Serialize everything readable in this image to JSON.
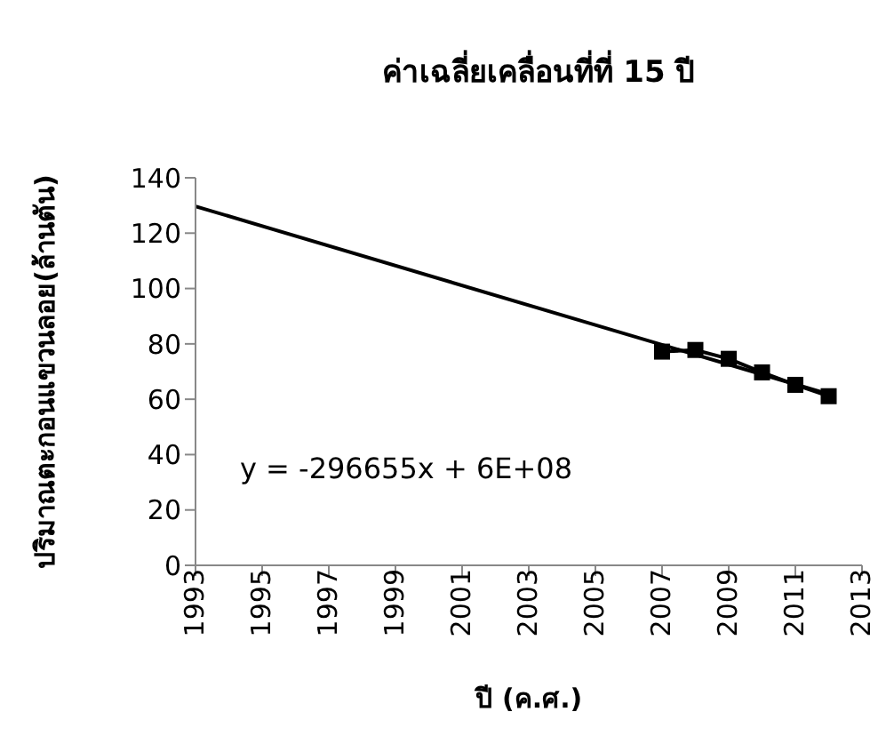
{
  "chart_data": {
    "type": "line",
    "title": "ค่าเฉลี่ยเคลื่อนที่ที่ 15 ปี",
    "xlabel": "ปี  (ค.ศ.)",
    "ylabel": "ปริมาณตะกอนแขวนลอย(ล้านตัน)",
    "annotations": [
      "y = -296655x + 6E+08"
    ],
    "xlim": [
      1993,
      2013
    ],
    "xticks": [
      1993,
      1995,
      1997,
      1999,
      2001,
      2003,
      2005,
      2007,
      2009,
      2011,
      2013
    ],
    "ylim": [
      0,
      140
    ],
    "yticks": [
      0,
      20,
      40,
      60,
      80,
      100,
      120,
      140
    ],
    "grid": false,
    "series": [
      {
        "color": "#000000",
        "marker": "square",
        "line_style": "solid",
        "x": [
          2007,
          2008,
          2009,
          2010,
          2011,
          2012
        ],
        "values": [
          77.2,
          77.8,
          74.6,
          69.7,
          65.2,
          61.1
        ]
      },
      {
        "color": "#000000",
        "marker": "none",
        "line_style": "solid",
        "x": [
          1993,
          2012
        ],
        "values": [
          129.7,
          61.8
        ]
      }
    ]
  }
}
